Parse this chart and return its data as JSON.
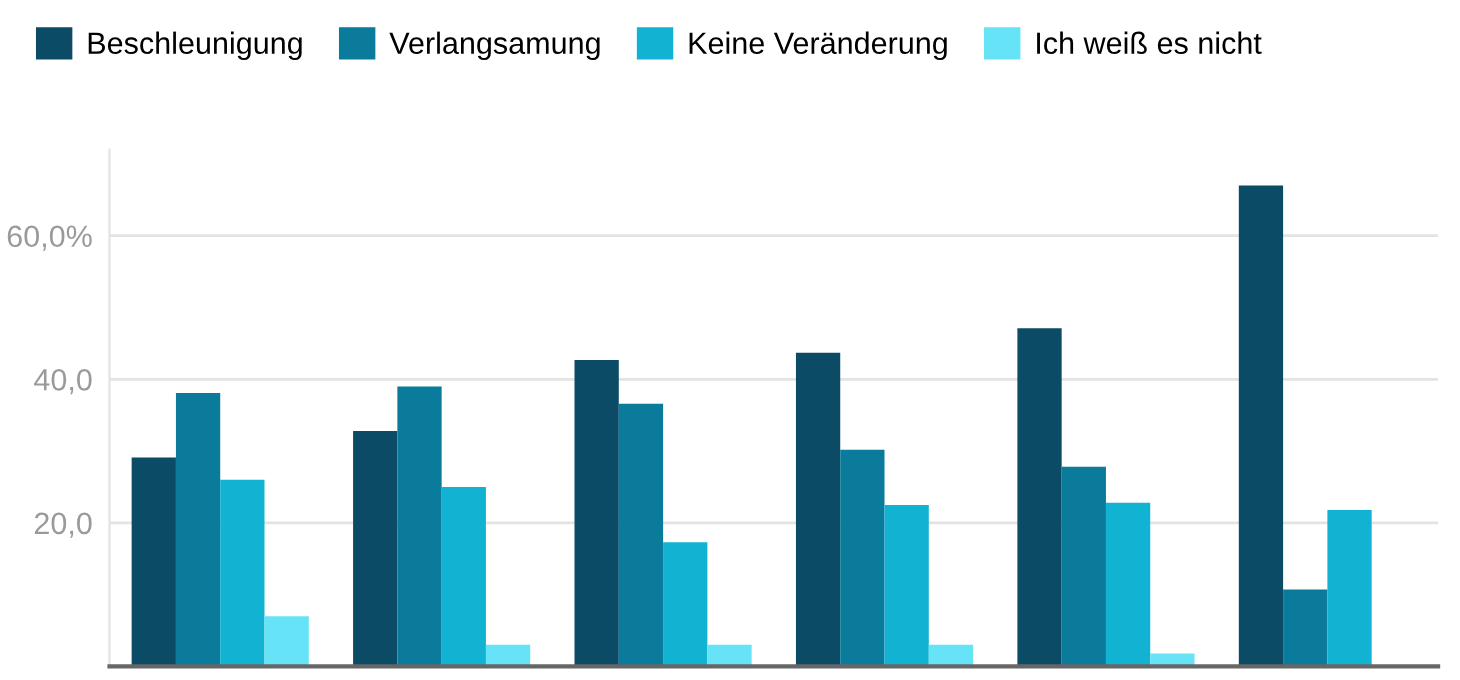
{
  "chart_data": {
    "type": "bar",
    "categories": [
      null,
      null,
      null,
      null,
      null,
      null
    ],
    "series": [
      {
        "name": "Beschleunigung",
        "color": "#0b4b66",
        "values": [
          29.1,
          32.8,
          42.7,
          43.7,
          47.1,
          67.0
        ]
      },
      {
        "name": "Verlangsamung",
        "color": "#0a7b9b",
        "values": [
          38.1,
          39.0,
          36.6,
          30.2,
          27.8,
          10.7
        ]
      },
      {
        "name": "Keine Veränderung",
        "color": "#12b3d2",
        "values": [
          26.0,
          25.0,
          17.3,
          22.5,
          22.8,
          21.8
        ]
      },
      {
        "name": "Ich weiß es nicht",
        "color": "#66e3f7",
        "values": [
          7.0,
          3.0,
          3.0,
          3.0,
          1.8,
          null
        ]
      }
    ],
    "ylim": [
      0,
      72
    ],
    "yticks": [
      {
        "value": 20,
        "label": "20,0"
      },
      {
        "value": 40,
        "label": "40,0"
      },
      {
        "value": 60,
        "label": "60,0%"
      }
    ],
    "grid": "y",
    "legend": "top left"
  }
}
